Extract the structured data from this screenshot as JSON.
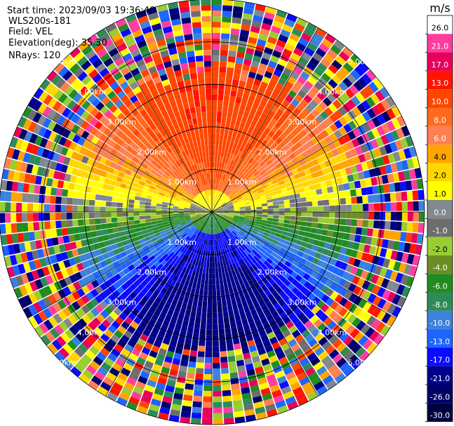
{
  "header": {
    "start_time": "Start time: 2023/09/03 19:36:40",
    "instrument": "WLS200s-181",
    "field": "Field: VEL",
    "elevation": "Elevation(deg): 35.30",
    "nrays": "NRays: 120"
  },
  "chart_data": {
    "type": "ppi",
    "title": "",
    "field": "VEL",
    "units": "m/s",
    "n_rays": 120,
    "elevation_deg": 35.3,
    "range_rings_km": [
      1.0,
      2.0,
      3.0,
      4.0,
      5.0
    ],
    "range_ring_labels": [
      "1.00km",
      "2.00km",
      "3.00km",
      "4.00km",
      "5.00km"
    ],
    "max_range_km": 5.0,
    "velocity_pattern": {
      "north_sector": "positive (away), +10 to +21 m/s",
      "south_sector": "negative (toward), -6 to -13 m/s",
      "east_west_sectors": "near zero, -1 to +2 m/s",
      "outer_ranges": "noisy / aliased values"
    },
    "colorbar": {
      "unit_label": "m/s",
      "ticks": [
        "26.0",
        "21.0",
        "17.0",
        "13.0",
        "10.0",
        "8.0",
        "6.0",
        "4.0",
        "2.0",
        "1.0",
        "0.0",
        "-1.0",
        "-2.0",
        "-4.0",
        "-6.0",
        "-8.0",
        "-10.0",
        "-13.0",
        "-17.0",
        "-21.0",
        "-26.0",
        "-30.0"
      ],
      "colors": [
        "#ffffff",
        "#ff3ca0",
        "#e8005a",
        "#ff1400",
        "#ff4500",
        "#ff6a1e",
        "#ff7f50",
        "#ffa500",
        "#ffd700",
        "#ffff00",
        "#808890",
        "#6e6e6e",
        "#9acd32",
        "#6b8e23",
        "#228b22",
        "#2e8b57",
        "#3c82dc",
        "#1e64ff",
        "#0a0aff",
        "#00008b",
        "#000066",
        "#000040"
      ]
    }
  }
}
